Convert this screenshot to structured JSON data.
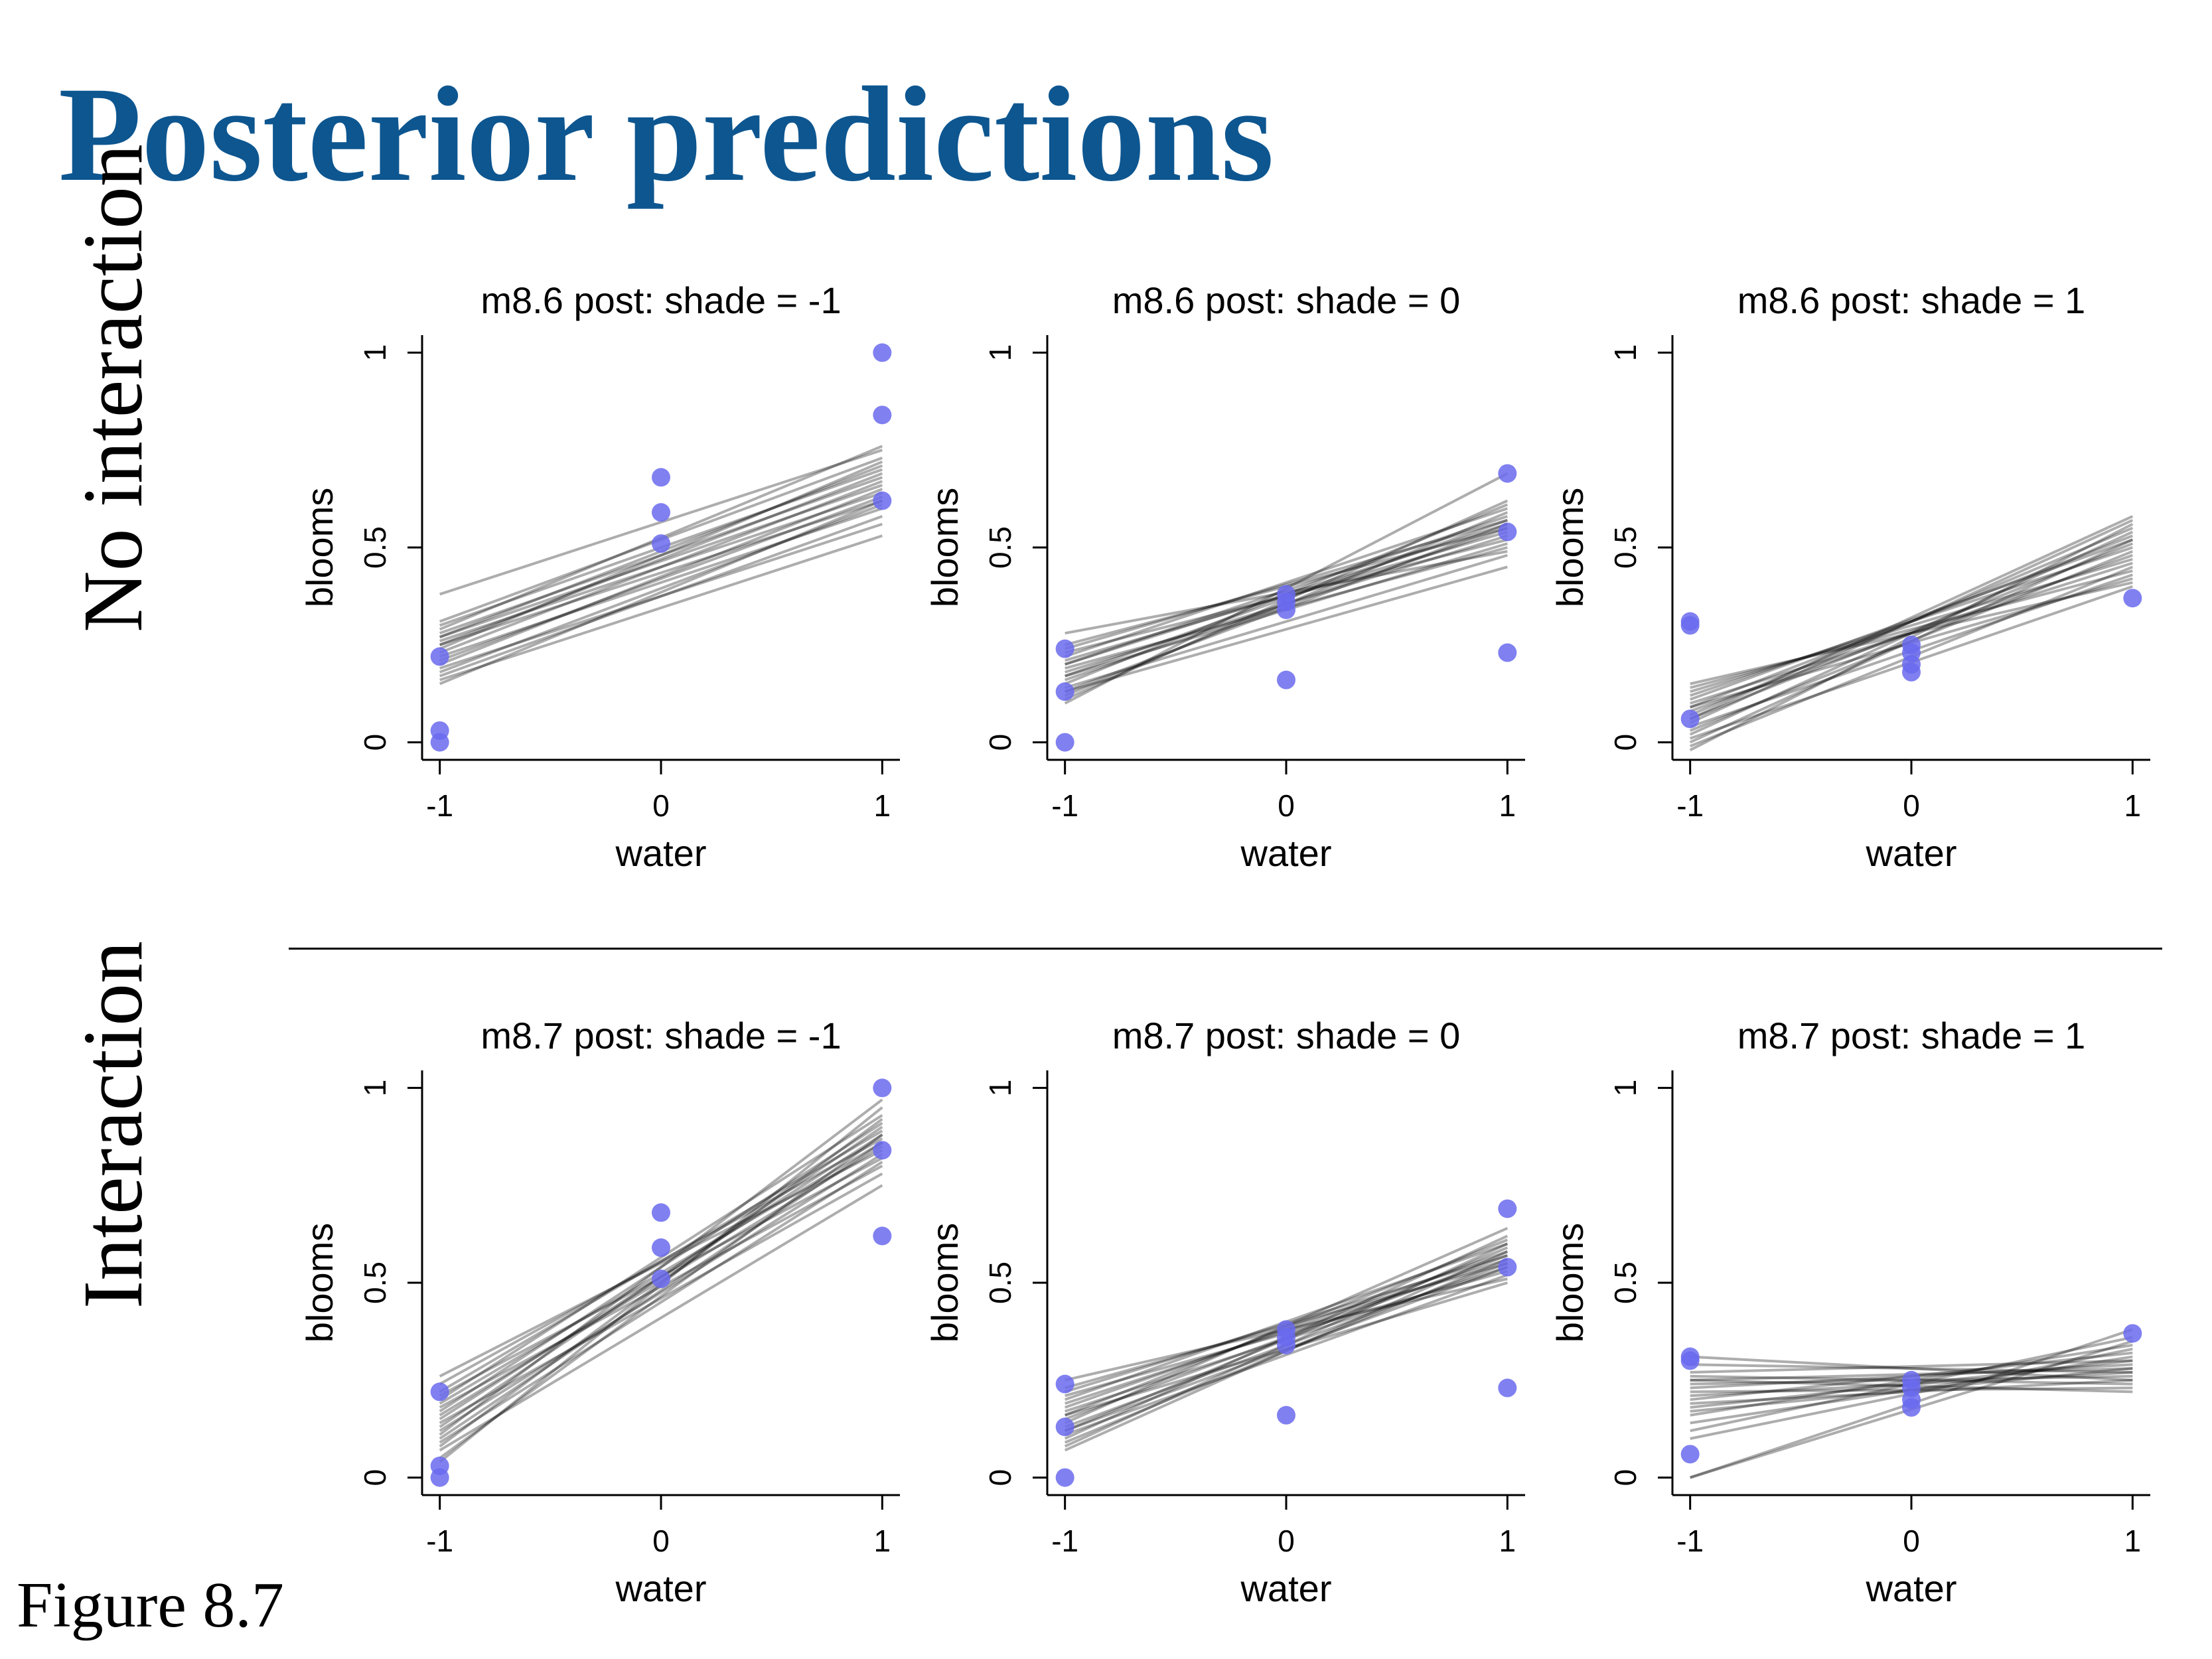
{
  "title": "Posterior predictions",
  "row_labels": [
    "No interaction",
    "Interaction"
  ],
  "figure_caption": "Figure 8.7",
  "colors": {
    "title": "#0d5690",
    "points": "#6a6aee",
    "lines": "#000000"
  },
  "chart_data": [
    {
      "type": "scatter",
      "title": "m8.6 post: shade = -1",
      "xlabel": "water",
      "ylabel": "blooms",
      "xticks": [
        -1,
        0,
        1
      ],
      "yticks": [
        0,
        0.5,
        1
      ],
      "ytick_labels": [
        "0",
        "0.5",
        "1"
      ],
      "xlim": [
        -1.08,
        1.08
      ],
      "ylim": [
        -0.045,
        1.045
      ],
      "points": [
        [
          -1,
          0.22
        ],
        [
          -1,
          0.03
        ],
        [
          -1,
          0.0
        ],
        [
          0,
          0.68
        ],
        [
          0,
          0.59
        ],
        [
          0,
          0.51
        ],
        [
          1,
          1.0
        ],
        [
          1,
          0.84
        ],
        [
          1,
          0.62
        ]
      ],
      "posterior_lines": [
        [
          -1,
          0.38,
          1,
          0.75
        ],
        [
          -1,
          0.31,
          1,
          0.73
        ],
        [
          -1,
          0.3,
          1,
          0.7
        ],
        [
          -1,
          0.29,
          1,
          0.76
        ],
        [
          -1,
          0.28,
          1,
          0.68
        ],
        [
          -1,
          0.27,
          1,
          0.71
        ],
        [
          -1,
          0.27,
          1,
          0.66
        ],
        [
          -1,
          0.26,
          1,
          0.64
        ],
        [
          -1,
          0.25,
          1,
          0.62
        ],
        [
          -1,
          0.25,
          1,
          0.69
        ],
        [
          -1,
          0.24,
          1,
          0.72
        ],
        [
          -1,
          0.23,
          1,
          0.67
        ],
        [
          -1,
          0.22,
          1,
          0.6
        ],
        [
          -1,
          0.21,
          1,
          0.63
        ],
        [
          -1,
          0.2,
          1,
          0.65
        ],
        [
          -1,
          0.19,
          1,
          0.56
        ],
        [
          -1,
          0.18,
          1,
          0.61
        ],
        [
          -1,
          0.17,
          1,
          0.58
        ],
        [
          -1,
          0.16,
          1,
          0.53
        ],
        [
          -1,
          0.15,
          1,
          0.62
        ]
      ]
    },
    {
      "type": "scatter",
      "title": "m8.6 post: shade = 0",
      "xlabel": "water",
      "ylabel": "blooms",
      "xticks": [
        -1,
        0,
        1
      ],
      "yticks": [
        0,
        0.5,
        1
      ],
      "ytick_labels": [
        "0",
        "0.5",
        "1"
      ],
      "xlim": [
        -1.08,
        1.08
      ],
      "ylim": [
        -0.045,
        1.045
      ],
      "points": [
        [
          -1,
          0.24
        ],
        [
          -1,
          0.13
        ],
        [
          -1,
          0.0
        ],
        [
          0,
          0.38
        ],
        [
          0,
          0.36
        ],
        [
          0,
          0.34
        ],
        [
          0,
          0.16
        ],
        [
          1,
          0.69
        ],
        [
          1,
          0.54
        ],
        [
          1,
          0.23
        ]
      ],
      "posterior_lines": [
        [
          -1,
          0.28,
          1,
          0.49
        ],
        [
          -1,
          0.25,
          1,
          0.55
        ],
        [
          -1,
          0.24,
          1,
          0.57
        ],
        [
          -1,
          0.23,
          1,
          0.52
        ],
        [
          -1,
          0.22,
          1,
          0.6
        ],
        [
          -1,
          0.21,
          1,
          0.54
        ],
        [
          -1,
          0.2,
          1,
          0.56
        ],
        [
          -1,
          0.2,
          1,
          0.58
        ],
        [
          -1,
          0.19,
          1,
          0.5
        ],
        [
          -1,
          0.18,
          1,
          0.53
        ],
        [
          -1,
          0.17,
          1,
          0.57
        ],
        [
          -1,
          0.16,
          1,
          0.55
        ],
        [
          -1,
          0.15,
          1,
          0.61
        ],
        [
          -1,
          0.14,
          1,
          0.48
        ],
        [
          -1,
          0.13,
          1,
          0.45
        ],
        [
          -1,
          0.12,
          1,
          0.59
        ],
        [
          -1,
          0.11,
          1,
          0.62
        ],
        [
          -1,
          0.1,
          1,
          0.69
        ],
        [
          -1,
          0.17,
          1,
          0.51
        ],
        [
          -1,
          0.13,
          1,
          0.56
        ]
      ]
    },
    {
      "type": "scatter",
      "title": "m8.6 post: shade = 1",
      "xlabel": "water",
      "ylabel": "blooms",
      "xticks": [
        -1,
        0,
        1
      ],
      "yticks": [
        0,
        0.5,
        1
      ],
      "ytick_labels": [
        "0",
        "0.5",
        "1"
      ],
      "xlim": [
        -1.08,
        1.08
      ],
      "ylim": [
        -0.045,
        1.045
      ],
      "points": [
        [
          -1,
          0.31
        ],
        [
          -1,
          0.3
        ],
        [
          -1,
          0.06
        ],
        [
          0,
          0.25
        ],
        [
          0,
          0.23
        ],
        [
          0,
          0.2
        ],
        [
          0,
          0.18
        ],
        [
          1,
          0.37
        ]
      ],
      "posterior_lines": [
        [
          -1,
          0.15,
          1,
          0.41
        ],
        [
          -1,
          0.14,
          1,
          0.44
        ],
        [
          -1,
          0.13,
          1,
          0.47
        ],
        [
          -1,
          0.12,
          1,
          0.5
        ],
        [
          -1,
          0.11,
          1,
          0.52
        ],
        [
          -1,
          0.1,
          1,
          0.46
        ],
        [
          -1,
          0.09,
          1,
          0.53
        ],
        [
          -1,
          0.08,
          1,
          0.48
        ],
        [
          -1,
          0.07,
          1,
          0.55
        ],
        [
          -1,
          0.06,
          1,
          0.51
        ],
        [
          -1,
          0.05,
          1,
          0.57
        ],
        [
          -1,
          0.04,
          1,
          0.43
        ],
        [
          -1,
          0.03,
          1,
          0.49
        ],
        [
          -1,
          0.02,
          1,
          0.54
        ],
        [
          -1,
          0.01,
          1,
          0.4
        ],
        [
          -1,
          0.0,
          1,
          0.52
        ],
        [
          -1,
          -0.01,
          1,
          0.45
        ],
        [
          -1,
          -0.02,
          1,
          0.56
        ],
        [
          -1,
          0.06,
          1,
          0.58
        ],
        [
          -1,
          0.09,
          1,
          0.42
        ]
      ]
    },
    {
      "type": "scatter",
      "title": "m8.7 post: shade = -1",
      "xlabel": "water",
      "ylabel": "blooms",
      "xticks": [
        -1,
        0,
        1
      ],
      "yticks": [
        0,
        0.5,
        1
      ],
      "ytick_labels": [
        "0",
        "0.5",
        "1"
      ],
      "xlim": [
        -1.08,
        1.08
      ],
      "ylim": [
        -0.045,
        1.045
      ],
      "points": [
        [
          -1,
          0.22
        ],
        [
          -1,
          0.03
        ],
        [
          -1,
          0.0
        ],
        [
          0,
          0.68
        ],
        [
          0,
          0.59
        ],
        [
          0,
          0.51
        ],
        [
          1,
          1.0
        ],
        [
          1,
          0.84
        ],
        [
          1,
          0.62
        ]
      ],
      "posterior_lines": [
        [
          -1,
          0.26,
          1,
          0.84
        ],
        [
          -1,
          0.24,
          1,
          0.87
        ],
        [
          -1,
          0.22,
          1,
          0.89
        ],
        [
          -1,
          0.21,
          1,
          0.82
        ],
        [
          -1,
          0.2,
          1,
          0.93
        ],
        [
          -1,
          0.19,
          1,
          0.86
        ],
        [
          -1,
          0.18,
          1,
          0.8
        ],
        [
          -1,
          0.17,
          1,
          0.91
        ],
        [
          -1,
          0.16,
          1,
          0.85
        ],
        [
          -1,
          0.15,
          1,
          0.88
        ],
        [
          -1,
          0.14,
          1,
          0.78
        ],
        [
          -1,
          0.13,
          1,
          0.9
        ],
        [
          -1,
          0.12,
          1,
          0.83
        ],
        [
          -1,
          0.11,
          1,
          0.97
        ],
        [
          -1,
          0.1,
          1,
          0.86
        ],
        [
          -1,
          0.09,
          1,
          0.81
        ],
        [
          -1,
          0.08,
          1,
          0.92
        ],
        [
          -1,
          0.07,
          1,
          0.75
        ],
        [
          -1,
          0.05,
          1,
          0.88
        ],
        [
          -1,
          0.04,
          1,
          0.95
        ]
      ]
    },
    {
      "type": "scatter",
      "title": "m8.7 post: shade = 0",
      "xlabel": "water",
      "ylabel": "blooms",
      "xticks": [
        -1,
        0,
        1
      ],
      "yticks": [
        0,
        0.5,
        1
      ],
      "ytick_labels": [
        "0",
        "0.5",
        "1"
      ],
      "xlim": [
        -1.08,
        1.08
      ],
      "ylim": [
        -0.045,
        1.045
      ],
      "points": [
        [
          -1,
          0.24
        ],
        [
          -1,
          0.13
        ],
        [
          -1,
          0.0
        ],
        [
          0,
          0.38
        ],
        [
          0,
          0.36
        ],
        [
          0,
          0.34
        ],
        [
          0,
          0.16
        ],
        [
          1,
          0.69
        ],
        [
          1,
          0.54
        ],
        [
          1,
          0.23
        ]
      ],
      "posterior_lines": [
        [
          -1,
          0.25,
          1,
          0.51
        ],
        [
          -1,
          0.23,
          1,
          0.55
        ],
        [
          -1,
          0.22,
          1,
          0.57
        ],
        [
          -1,
          0.21,
          1,
          0.53
        ],
        [
          -1,
          0.2,
          1,
          0.6
        ],
        [
          -1,
          0.19,
          1,
          0.56
        ],
        [
          -1,
          0.18,
          1,
          0.58
        ],
        [
          -1,
          0.17,
          1,
          0.54
        ],
        [
          -1,
          0.16,
          1,
          0.61
        ],
        [
          -1,
          0.15,
          1,
          0.57
        ],
        [
          -1,
          0.14,
          1,
          0.64
        ],
        [
          -1,
          0.13,
          1,
          0.55
        ],
        [
          -1,
          0.12,
          1,
          0.59
        ],
        [
          -1,
          0.11,
          1,
          0.52
        ],
        [
          -1,
          0.1,
          1,
          0.62
        ],
        [
          -1,
          0.09,
          1,
          0.56
        ],
        [
          -1,
          0.08,
          1,
          0.6
        ],
        [
          -1,
          0.07,
          1,
          0.58
        ],
        [
          -1,
          0.16,
          1,
          0.5
        ],
        [
          -1,
          0.12,
          1,
          0.54
        ]
      ]
    },
    {
      "type": "scatter",
      "title": "m8.7 post: shade = 1",
      "xlabel": "water",
      "ylabel": "blooms",
      "xticks": [
        -1,
        0,
        1
      ],
      "yticks": [
        0,
        0.5,
        1
      ],
      "ytick_labels": [
        "0",
        "0.5",
        "1"
      ],
      "xlim": [
        -1.08,
        1.08
      ],
      "ylim": [
        -0.045,
        1.045
      ],
      "points": [
        [
          -1,
          0.31
        ],
        [
          -1,
          0.3
        ],
        [
          -1,
          0.06
        ],
        [
          0,
          0.25
        ],
        [
          0,
          0.23
        ],
        [
          0,
          0.2
        ],
        [
          0,
          0.18
        ],
        [
          1,
          0.37
        ]
      ],
      "posterior_lines": [
        [
          -1,
          0.31,
          1,
          0.25
        ],
        [
          -1,
          0.29,
          1,
          0.27
        ],
        [
          -1,
          0.27,
          1,
          0.3
        ],
        [
          -1,
          0.26,
          1,
          0.24
        ],
        [
          -1,
          0.25,
          1,
          0.28
        ],
        [
          -1,
          0.25,
          1,
          0.22
        ],
        [
          -1,
          0.24,
          1,
          0.26
        ],
        [
          -1,
          0.23,
          1,
          0.29
        ],
        [
          -1,
          0.22,
          1,
          0.23
        ],
        [
          -1,
          0.21,
          1,
          0.27
        ],
        [
          -1,
          0.2,
          1,
          0.32
        ],
        [
          -1,
          0.19,
          1,
          0.25
        ],
        [
          -1,
          0.18,
          1,
          0.3
        ],
        [
          -1,
          0.17,
          1,
          0.28
        ],
        [
          -1,
          0.16,
          1,
          0.34
        ],
        [
          -1,
          0.14,
          1,
          0.31
        ],
        [
          -1,
          0.12,
          1,
          0.36
        ],
        [
          -1,
          0.0,
          1,
          0.38
        ],
        [
          -1,
          0.0,
          1,
          0.35
        ],
        [
          -1,
          0.1,
          1,
          0.33
        ]
      ]
    }
  ]
}
